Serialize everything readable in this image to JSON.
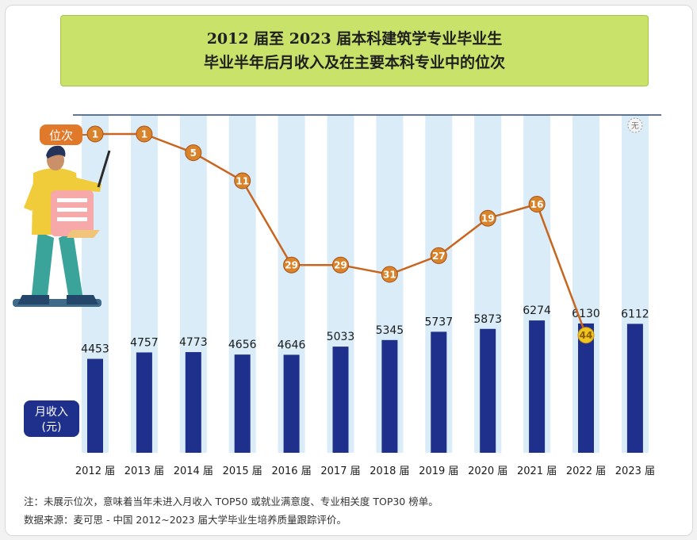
{
  "title_lines": [
    "2012 届至 2023 届本科建筑学专业毕业生",
    "毕业半年后月收入及在主要本科专业中的位次"
  ],
  "rank_label": "位次",
  "income_label_lines": [
    "月收入",
    "(元)"
  ],
  "no_rank_symbol": "无",
  "notes": [
    "注：未展示位次，意味着当年未进入月收入 TOP50 或就业满意度、专业相关度 TOP30 榜单。",
    "数据来源：麦可思 - 中国 2012~2023 届大学毕业生培养质量跟踪评价。"
  ],
  "colors": {
    "bar": "#1e2f8c",
    "stripe": "#d9ecf8",
    "rank_line": "#c8651e",
    "rank_circle": "#d9832b",
    "rank_highlight": "#f0c61c",
    "label_box": "#e07a2a",
    "income_box": "#1e2f8c",
    "title_bg": "#c9e26a"
  },
  "chart_data": {
    "type": "bar",
    "categories": [
      "2012 届",
      "2013 届",
      "2014 届",
      "2015 届",
      "2016 届",
      "2017 届",
      "2018 届",
      "2019 届",
      "2020 届",
      "2021 届",
      "2022 届",
      "2023 届"
    ],
    "series": [
      {
        "name": "月收入",
        "values": [
          4453,
          4757,
          4773,
          4656,
          4646,
          5033,
          5345,
          5737,
          5873,
          6274,
          6130,
          6112
        ]
      },
      {
        "name": "位次",
        "values": [
          1,
          1,
          5,
          11,
          29,
          29,
          31,
          27,
          19,
          16,
          44,
          null
        ]
      }
    ],
    "highlight_rank_index": 10,
    "missing_rank_index": 11
  }
}
